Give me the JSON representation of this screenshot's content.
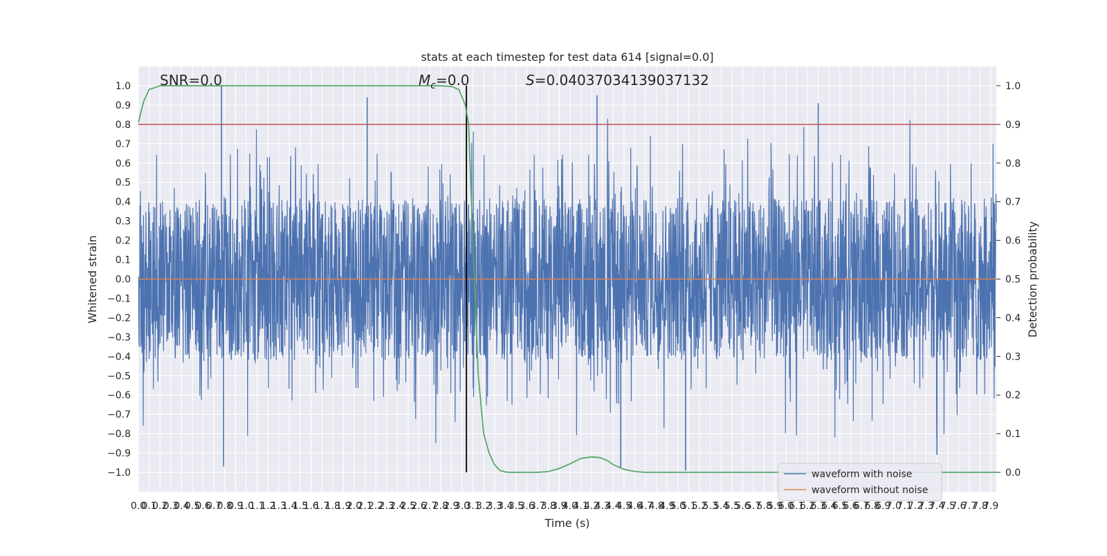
{
  "chart_data": {
    "type": "line",
    "title": "stats at each timestep for test data 614 [signal=0.0]",
    "xlabel": "Time (s)",
    "ylabel": "Whitened strain",
    "ylabel_right": "Detection probability",
    "xlim": [
      0.0,
      7.95
    ],
    "ylim": [
      -1.1,
      1.1
    ],
    "ylim_right": [
      -0.05,
      1.05
    ],
    "x_ticks": [
      "0.0",
      "0.1",
      "0.2",
      "0.3",
      "0.4",
      "0.5",
      "0.6",
      "0.7",
      "0.8",
      "0.9",
      "1.0",
      "1.1",
      "1.2",
      "1.3",
      "1.4",
      "1.5",
      "1.6",
      "1.7",
      "1.8",
      "1.9",
      "2.0",
      "2.1",
      "2.2",
      "2.3",
      "2.4",
      "2.5",
      "2.6",
      "2.7",
      "2.8",
      "2.9",
      "3.0",
      "3.1",
      "3.2",
      "3.3",
      "3.4",
      "3.5",
      "3.6",
      "3.7",
      "3.8",
      "3.9",
      "4.0",
      "4.1",
      "4.2",
      "4.3",
      "4.4",
      "4.5",
      "4.6",
      "4.7",
      "4.8",
      "4.9",
      "5.0",
      "5.1",
      "5.2",
      "5.3",
      "5.4",
      "5.5",
      "5.6",
      "5.7",
      "5.8",
      "5.9",
      "6.0",
      "6.1",
      "6.2",
      "6.3",
      "6.4",
      "6.5",
      "6.6",
      "6.7",
      "6.8",
      "6.9",
      "7.0",
      "7.1",
      "7.2",
      "7.3",
      "7.4",
      "7.5",
      "7.6",
      "7.7",
      "7.8",
      "7.9"
    ],
    "y_ticks": [
      "1.0",
      "0.9",
      "0.8",
      "0.7",
      "0.6",
      "0.5",
      "0.4",
      "0.3",
      "0.2",
      "0.1",
      "0.0",
      "−0.1",
      "−0.2",
      "−0.3",
      "−0.4",
      "−0.5",
      "−0.6",
      "−0.7",
      "−0.8",
      "−0.9",
      "−1.0"
    ],
    "y_ticks_right": [
      "1.0",
      "0.9",
      "0.8",
      "0.7",
      "0.6",
      "0.5",
      "0.4",
      "0.3",
      "0.2",
      "0.1",
      "0.0"
    ],
    "annotations": {
      "snr": "SNR=0.0",
      "mc_symbol": "M",
      "mc_subscript": "c",
      "mc_value": "=0.0",
      "s_symbol": "S",
      "s_value": "=0.04037034139037132"
    },
    "grid": true,
    "legend_position": "lower right",
    "series": [
      {
        "name": "waveform with noise",
        "color": "#4c72b0",
        "axis": "left",
        "style": "dense noise, envelope approx ±0.45 with peaks to ±1.0",
        "notable_peaks": [
          {
            "x": 0.77,
            "y": 1.0
          },
          {
            "x": 0.79,
            "y": -0.97
          },
          {
            "x": 2.12,
            "y": 0.94
          },
          {
            "x": 4.25,
            "y": 0.95
          },
          {
            "x": 4.47,
            "y": -0.98
          },
          {
            "x": 5.07,
            "y": -0.99
          },
          {
            "x": 6.3,
            "y": 0.91
          },
          {
            "x": 7.4,
            "y": -0.91
          }
        ]
      },
      {
        "name": "waveform without noise",
        "color": "#dd8452",
        "axis": "left",
        "x": [
          0.0,
          7.95
        ],
        "y": [
          0.0,
          0.0
        ]
      },
      {
        "name": "",
        "color": "#55a868",
        "axis": "right",
        "x": [
          0.0,
          0.05,
          0.1,
          0.2,
          0.4,
          1.0,
          2.0,
          2.6,
          2.8,
          2.9,
          2.97,
          3.0,
          3.03,
          3.06,
          3.1,
          3.15,
          3.2,
          3.25,
          3.3,
          3.35,
          3.4,
          3.45,
          3.5,
          3.55,
          3.6,
          3.7,
          3.8,
          3.9,
          4.0,
          4.1,
          4.2,
          4.28,
          4.35,
          4.4,
          4.5,
          4.6,
          4.7,
          4.8,
          5.0,
          6.0,
          7.0,
          7.95
        ],
        "y": [
          0.905,
          0.96,
          0.99,
          1.0,
          1.0,
          1.0,
          1.0,
          1.0,
          1.0,
          0.998,
          0.99,
          0.97,
          0.95,
          0.9,
          0.6,
          0.25,
          0.1,
          0.05,
          0.02,
          0.005,
          0.001,
          0.0,
          0.0,
          0.0,
          0.0,
          0.0,
          0.002,
          0.01,
          0.022,
          0.036,
          0.04,
          0.038,
          0.03,
          0.02,
          0.008,
          0.002,
          0.0,
          0.0,
          0.0,
          0.0,
          0.0,
          0.0
        ]
      }
    ],
    "threshold": {
      "color": "#c44e52",
      "axis": "right",
      "value": 0.9
    },
    "vline": {
      "color": "#000000",
      "x": 3.04,
      "ymin": -1.0,
      "ymax": 1.0
    }
  }
}
